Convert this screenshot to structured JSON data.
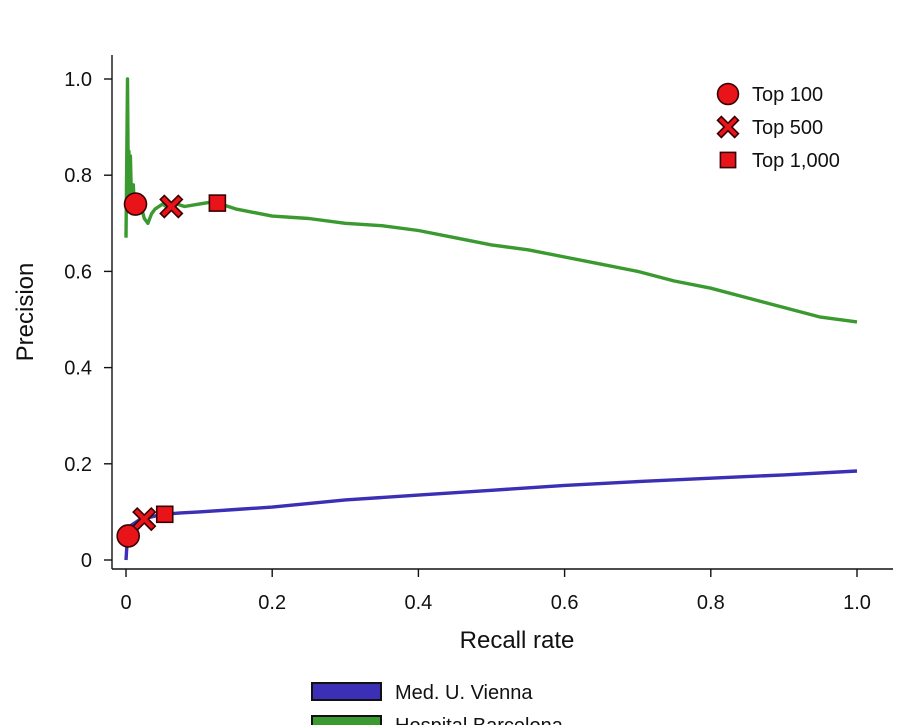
{
  "chart_data": {
    "type": "line",
    "xlabel": "Recall rate",
    "ylabel": "Precision",
    "xlim": [
      0,
      1.0
    ],
    "ylim": [
      0,
      1.0
    ],
    "xticks": [
      "0",
      "0.2",
      "0.4",
      "0.6",
      "0.8",
      "1.0"
    ],
    "yticks": [
      "0",
      "0.2",
      "0.4",
      "0.6",
      "0.8",
      "1.0"
    ],
    "grid": false,
    "marker_legend_position": "top-right",
    "series_legend_position": "bottom-center",
    "marker_color": "#e8141a",
    "marker_legend": [
      {
        "label": "Top 100",
        "shape": "circle"
      },
      {
        "label": "Top 500",
        "shape": "cross"
      },
      {
        "label": "Top 1,000",
        "shape": "square"
      }
    ],
    "series": [
      {
        "name": "Med. U. Vienna",
        "color": "#3a2fb5",
        "x": [
          0.0,
          0.002,
          0.005,
          0.01,
          0.02,
          0.03,
          0.05,
          0.075,
          0.1,
          0.15,
          0.2,
          0.3,
          0.4,
          0.5,
          0.6,
          0.7,
          0.8,
          0.9,
          1.0
        ],
        "y": [
          0.0,
          0.05,
          0.07,
          0.075,
          0.085,
          0.088,
          0.095,
          0.098,
          0.1,
          0.105,
          0.11,
          0.125,
          0.135,
          0.145,
          0.155,
          0.163,
          0.17,
          0.177,
          0.185
        ],
        "markers": [
          {
            "label": "Top 100",
            "shape": "circle",
            "x": 0.003,
            "y": 0.05
          },
          {
            "label": "Top 500",
            "shape": "cross",
            "x": 0.025,
            "y": 0.085
          },
          {
            "label": "Top 1,000",
            "shape": "square",
            "x": 0.053,
            "y": 0.095
          }
        ]
      },
      {
        "name": "Hospital Barcelona",
        "color": "#3a9a30",
        "x": [
          0.0,
          0.002,
          0.003,
          0.004,
          0.005,
          0.006,
          0.008,
          0.01,
          0.012,
          0.015,
          0.02,
          0.025,
          0.03,
          0.035,
          0.04,
          0.05,
          0.06,
          0.07,
          0.08,
          0.1,
          0.12,
          0.15,
          0.2,
          0.25,
          0.3,
          0.35,
          0.4,
          0.45,
          0.5,
          0.55,
          0.6,
          0.65,
          0.7,
          0.75,
          0.8,
          0.85,
          0.9,
          0.95,
          1.0
        ],
        "y": [
          0.67,
          1.0,
          0.8,
          0.85,
          0.74,
          0.84,
          0.72,
          0.78,
          0.72,
          0.73,
          0.74,
          0.71,
          0.7,
          0.72,
          0.73,
          0.74,
          0.73,
          0.74,
          0.735,
          0.74,
          0.745,
          0.73,
          0.715,
          0.71,
          0.7,
          0.695,
          0.685,
          0.67,
          0.655,
          0.645,
          0.63,
          0.615,
          0.6,
          0.58,
          0.565,
          0.545,
          0.525,
          0.505,
          0.495
        ],
        "markers": [
          {
            "label": "Top 100",
            "shape": "circle",
            "x": 0.013,
            "y": 0.74
          },
          {
            "label": "Top 500",
            "shape": "cross",
            "x": 0.062,
            "y": 0.735
          },
          {
            "label": "Top 1,000",
            "shape": "square",
            "x": 0.125,
            "y": 0.742
          }
        ]
      }
    ]
  }
}
